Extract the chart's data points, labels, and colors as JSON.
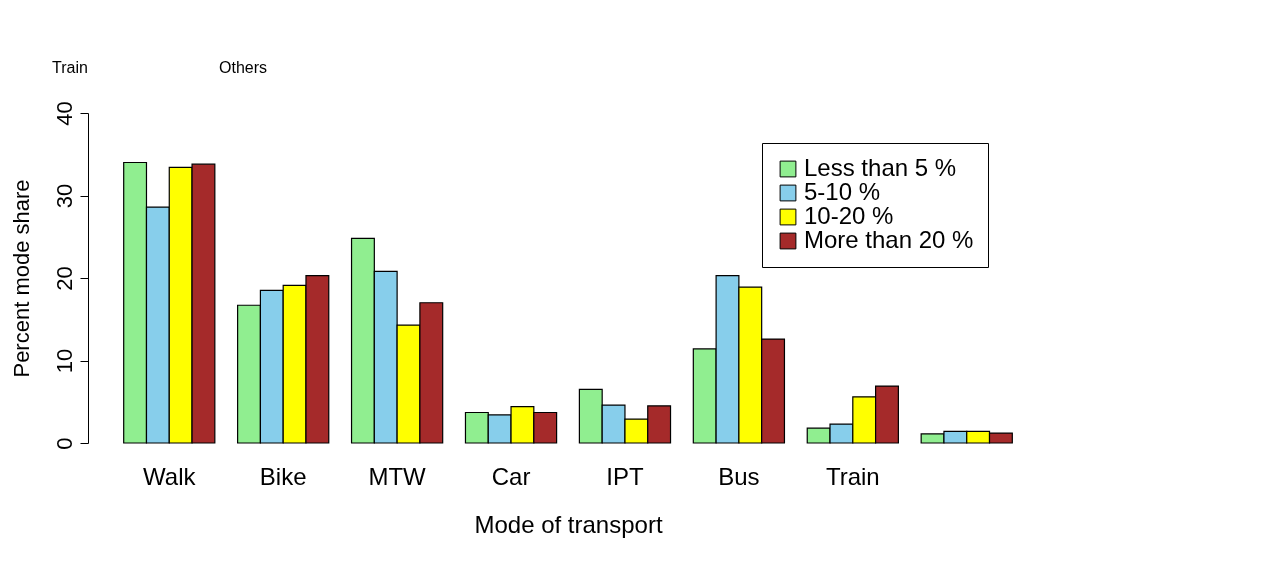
{
  "chart_data": {
    "type": "bar",
    "xlabel": "Mode of transport",
    "ylabel": "Percent mode share",
    "categories": [
      "Walk",
      "Bike",
      "MTW",
      "Car",
      "IPT",
      "Bus",
      "Train",
      null
    ],
    "series": [
      {
        "name": "Less than 5 %",
        "color": "#90ee90",
        "values": [
          34.0,
          16.7,
          24.8,
          3.7,
          6.5,
          11.4,
          1.8,
          1.1
        ]
      },
      {
        "name": "5-10 %",
        "color": "#87ceeb",
        "values": [
          28.6,
          18.5,
          20.8,
          3.4,
          4.6,
          20.3,
          2.3,
          1.4
        ]
      },
      {
        "name": "10-20 %",
        "color": "#ffff00",
        "values": [
          33.4,
          19.1,
          14.3,
          4.4,
          2.9,
          18.9,
          5.6,
          1.4
        ]
      },
      {
        "name": "More than 20 %",
        "color": "#a52a2a",
        "values": [
          33.8,
          20.3,
          17.0,
          3.7,
          4.5,
          12.6,
          6.9,
          1.2
        ]
      }
    ],
    "ylim": [
      0,
      40
    ],
    "yticks": [
      0,
      10,
      20,
      30,
      40
    ],
    "grid": false,
    "legend": "top right",
    "annotations": [
      "Train",
      "Others"
    ]
  }
}
